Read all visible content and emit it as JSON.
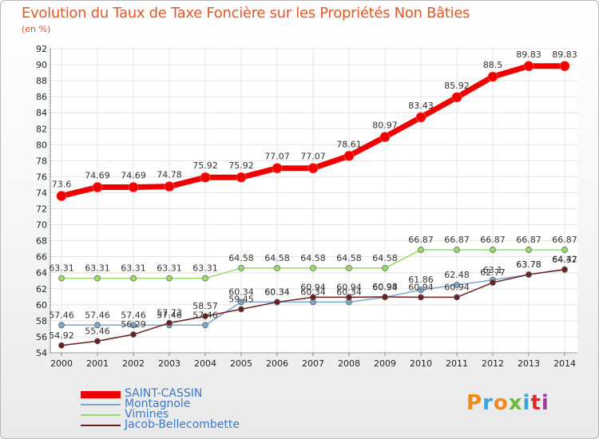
{
  "chart_data": {
    "type": "line",
    "title": "Evolution du Taux de Taxe Foncière sur les Propriétés Non Bâties",
    "ylabel": "(en %)",
    "xlabel": "",
    "ylim": [
      54,
      92
    ],
    "yticks": [
      54,
      56,
      58,
      60,
      62,
      64,
      66,
      68,
      70,
      72,
      74,
      76,
      78,
      80,
      82,
      84,
      86,
      88,
      90,
      92
    ],
    "x": [
      2000,
      2001,
      2002,
      2003,
      2004,
      2005,
      2006,
      2007,
      2008,
      2009,
      2010,
      2011,
      2012,
      2013,
      2014
    ],
    "series": [
      {
        "name": "SAINT-CASSIN",
        "color": "#ee0000",
        "values": [
          73.6,
          74.69,
          74.69,
          74.78,
          75.92,
          75.92,
          77.07,
          77.07,
          78.61,
          80.97,
          83.43,
          85.92,
          88.5,
          89.83,
          89.83
        ],
        "labels": [
          "73.6",
          "74.69",
          "74.69",
          "74.78",
          "75.92",
          "75.92",
          "77.07",
          "77.07",
          "78.61",
          "80.97",
          "83.43",
          "85.92",
          "88.5",
          "89.83",
          "89.83"
        ]
      },
      {
        "name": "Montagnole",
        "color": "#7ba7cc",
        "values": [
          57.46,
          57.46,
          57.46,
          57.46,
          57.46,
          60.34,
          60.34,
          60.34,
          60.34,
          60.94,
          61.86,
          62.48,
          63.1,
          63.78,
          64.37
        ],
        "labels": [
          "57.46",
          "57.46",
          "57.46",
          "57.46",
          "57.46",
          "60.34",
          "60.34",
          "60.34",
          "60.34",
          "60.94",
          "61.86",
          "62.48",
          "63.1",
          "63.78",
          "64.37"
        ]
      },
      {
        "name": "Vimines",
        "color": "#99dd66",
        "values": [
          63.31,
          63.31,
          63.31,
          63.31,
          63.31,
          64.58,
          64.58,
          64.58,
          64.58,
          64.58,
          66.87,
          66.87,
          66.87,
          66.87,
          66.87
        ],
        "labels": [
          "63.31",
          "63.31",
          "63.31",
          "63.31",
          "63.31",
          "64.58",
          "64.58",
          "64.58",
          "64.58",
          "64.58",
          "66.87",
          "66.87",
          "66.87",
          "66.87",
          "66.87"
        ]
      },
      {
        "name": "Jacob-Bellecombette",
        "color": "#6b1f1f",
        "values": [
          54.92,
          55.46,
          56.29,
          57.73,
          58.57,
          59.45,
          60.34,
          60.94,
          60.94,
          60.98,
          60.94,
          60.94,
          62.77,
          63.78,
          64.42
        ],
        "labels": [
          "54.92",
          "55.46",
          "56.29",
          "57.73",
          "58.57",
          "59.45",
          "60.34",
          "60.94",
          "60.94",
          "60.98",
          "60.94",
          "60.94",
          "62.77",
          "63.78",
          "64.42"
        ]
      }
    ],
    "legend_position": "bottom-left",
    "grid": true
  },
  "branding": {
    "logo_text": "Proxiti",
    "logo_colors": [
      "#f08a1c",
      "#3ba3d8",
      "#f08a1c",
      "#6cbb3c",
      "#3ba3d8",
      "#e2262a",
      "#9a3b9b"
    ]
  }
}
